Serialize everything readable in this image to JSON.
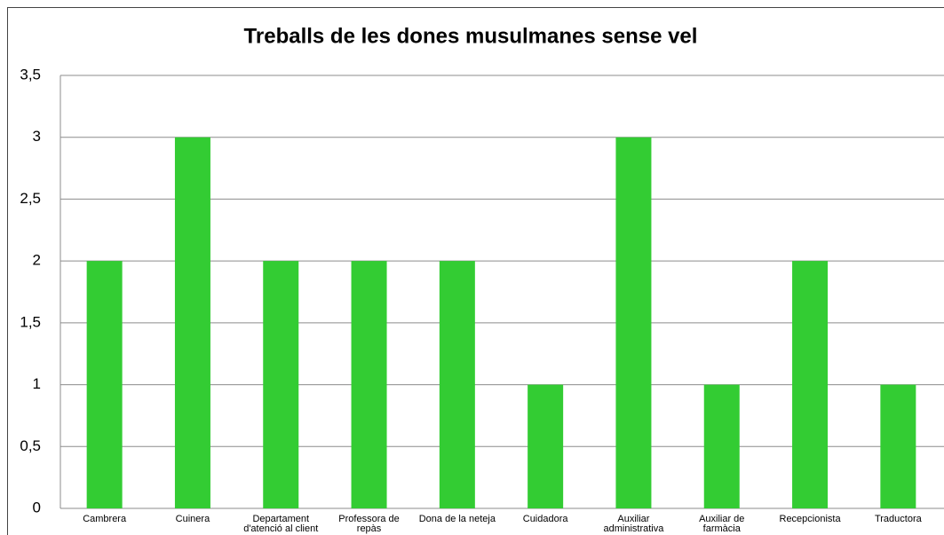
{
  "chart_data": {
    "type": "bar",
    "title": "Treballs de les dones musulmanes sense vel",
    "categories": [
      "Cambrera",
      "Cuinera",
      "Departament d'atenció al client",
      "Professora de repàs",
      "Dona de la neteja",
      "Cuidadora",
      "Auxiliar administrativa",
      "Auxiliar de farmàcia",
      "Recepcionista",
      "Traductora"
    ],
    "values": [
      2,
      3,
      2,
      2,
      2,
      1,
      3,
      1,
      2,
      1
    ],
    "color": "#33cc33",
    "ylim": [
      0,
      3.5
    ],
    "yticks": [
      0,
      {
        "value": 0.5,
        "label": "0,5"
      },
      1,
      {
        "value": 1.5,
        "label": "1,5"
      },
      2,
      {
        "value": 2.5,
        "label": "2,5"
      },
      3,
      {
        "value": 3.5,
        "label": "3,5"
      }
    ],
    "grid": true
  }
}
